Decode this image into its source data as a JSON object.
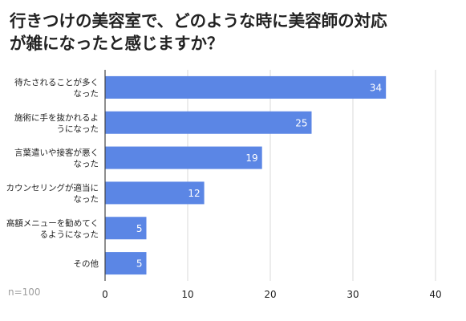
{
  "title_lines": [
    "行きつけの美容室で、どのような時に美容師の対応",
    "が雑になったと感じますか？"
  ],
  "note": "n=100",
  "colors": {
    "bar": "#5b86e5",
    "grid": "#d9d9d9",
    "axis": "#444444",
    "label": "#222222",
    "value_text": "#ffffff"
  },
  "chart_data": {
    "type": "bar",
    "orientation": "horizontal",
    "title": "行きつけの美容室で、どのような時に美容師の対応が雑になったと感じますか？",
    "categories": [
      [
        "待たされることが多く",
        "なった"
      ],
      [
        "施術に手を抜かれるよ",
        "うになった"
      ],
      [
        "言葉遣いや接客が悪く",
        "なった"
      ],
      [
        "カウンセリングが適当に",
        "なった"
      ],
      [
        "高額メニューを勧めてく",
        "るようになった"
      ],
      [
        "その他"
      ]
    ],
    "values": [
      34,
      25,
      19,
      12,
      5,
      5
    ],
    "xlim": [
      0,
      40
    ],
    "xticks": [
      0,
      10,
      20,
      30,
      40
    ],
    "grid": true,
    "legend": "none",
    "xlabel": "",
    "ylabel": ""
  }
}
